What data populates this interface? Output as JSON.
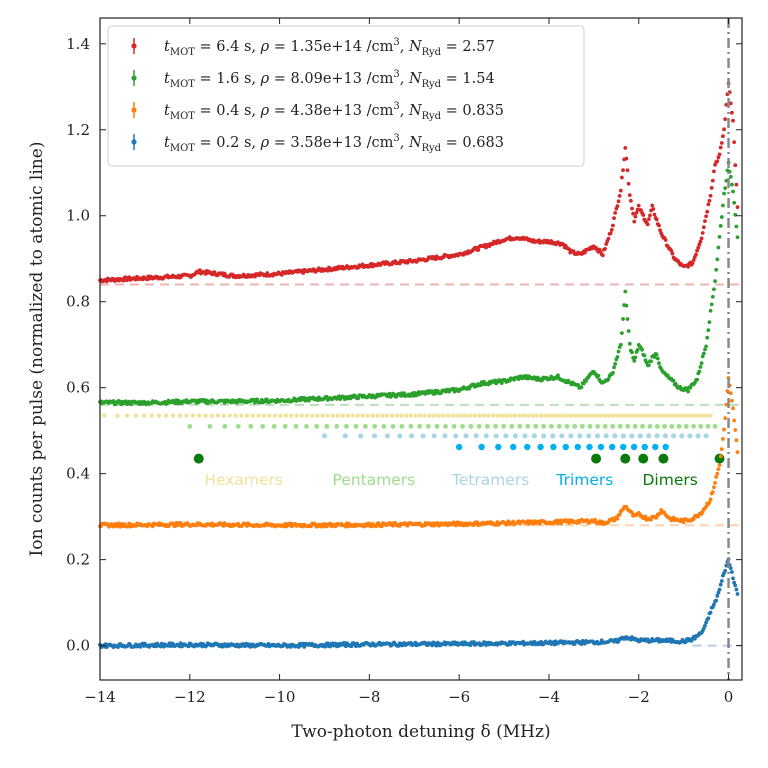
{
  "chart_data": {
    "type": "scatter",
    "xlabel": "Two-photon detuning δ (MHz)",
    "ylabel": "Ion counts per pulse (normalized to atomic line)",
    "xlim": [
      -14,
      0.3
    ],
    "ylim": [
      -0.08,
      1.46
    ],
    "x_ticks": [
      -14,
      -12,
      -10,
      -8,
      -6,
      -4,
      -2,
      0
    ],
    "x_tick_labels": [
      "−14",
      "−12",
      "−10",
      "−8",
      "−6",
      "−4",
      "−2",
      "0"
    ],
    "y_ticks": [
      0.0,
      0.2,
      0.4,
      0.6,
      0.8,
      1.0,
      1.2,
      1.4
    ],
    "y_tick_labels": [
      "0.0",
      "0.2",
      "0.4",
      "0.6",
      "0.8",
      "1.0",
      "1.2",
      "1.4"
    ],
    "grid": false,
    "legend_position": "top-left",
    "atomic_line_x": 0,
    "series": [
      {
        "name": "t_MOT = 6.4 s, ρ = 1.35e+14 /cm³, N_Ryd = 2.57",
        "legend": {
          "t": "6.4",
          "rho": "1.35e+14",
          "n": "2.57"
        },
        "color": "#d62728",
        "background": 0.84,
        "x": [
          -14,
          -13,
          -12,
          -11.8,
          -11,
          -10,
          -9,
          -8,
          -7,
          -6,
          -5.4,
          -5,
          -4.7,
          -4.3,
          -4,
          -3.7,
          -3.5,
          -3.3,
          -3.0,
          -2.8,
          -2.6,
          -2.4,
          -2.3,
          -2.2,
          -2.1,
          -2.0,
          -1.9,
          -1.8,
          -1.7,
          -1.6,
          -1.5,
          -1.4,
          -1.2,
          -1.0,
          -0.8,
          -0.6,
          -0.4,
          -0.3,
          -0.2,
          -0.1,
          0.0,
          0.1,
          0.2
        ],
        "y": [
          0.85,
          0.855,
          0.86,
          0.87,
          0.86,
          0.865,
          0.875,
          0.885,
          0.895,
          0.91,
          0.93,
          0.945,
          0.95,
          0.94,
          0.94,
          0.935,
          0.915,
          0.91,
          0.93,
          0.91,
          0.97,
          1.06,
          1.16,
          1.05,
          0.99,
          1.02,
          1.0,
          0.98,
          1.02,
          0.99,
          0.96,
          0.94,
          0.9,
          0.88,
          0.89,
          0.95,
          1.05,
          1.12,
          1.14,
          1.2,
          1.31,
          1.22,
          1.02
        ]
      },
      {
        "name": "t_MOT = 1.6 s, ρ = 8.09e+13 /cm³, N_Ryd = 1.54",
        "legend": {
          "t": "1.6",
          "rho": "8.09e+13",
          "n": "1.54"
        },
        "color": "#2ca02c",
        "background": 0.56,
        "x": [
          -14,
          -13,
          -12,
          -11,
          -10,
          -9,
          -8,
          -7,
          -6,
          -5.5,
          -5,
          -4.6,
          -4.2,
          -3.8,
          -3.5,
          -3.3,
          -3.0,
          -2.8,
          -2.6,
          -2.4,
          -2.3,
          -2.2,
          -2.1,
          -2.0,
          -1.9,
          -1.8,
          -1.7,
          -1.6,
          -1.5,
          -1.3,
          -1.1,
          -0.9,
          -0.7,
          -0.5,
          -0.3,
          -0.2,
          -0.1,
          0.0,
          0.1,
          0.2
        ],
        "y": [
          0.565,
          0.565,
          0.568,
          0.568,
          0.57,
          0.575,
          0.58,
          0.585,
          0.595,
          0.61,
          0.615,
          0.625,
          0.62,
          0.625,
          0.61,
          0.6,
          0.64,
          0.61,
          0.63,
          0.7,
          0.82,
          0.7,
          0.66,
          0.7,
          0.68,
          0.65,
          0.67,
          0.68,
          0.64,
          0.62,
          0.6,
          0.595,
          0.62,
          0.7,
          0.85,
          0.95,
          1.05,
          1.12,
          1.06,
          0.95
        ]
      },
      {
        "name": "t_MOT = 0.4 s, ρ = 4.38e+13 /cm³, N_Ryd = 0.835",
        "legend": {
          "t": "0.4",
          "rho": "4.38e+13",
          "n": "0.835"
        },
        "color": "#ff7f0e",
        "background": 0.28,
        "x": [
          -14,
          -12,
          -10,
          -8,
          -6,
          -4,
          -3.0,
          -2.8,
          -2.5,
          -2.3,
          -2.1,
          -2.0,
          -1.8,
          -1.6,
          -1.5,
          -1.3,
          -1.0,
          -0.8,
          -0.6,
          -0.4,
          -0.3,
          -0.2,
          -0.1,
          0.0,
          0.1,
          0.2
        ],
        "y": [
          0.28,
          0.282,
          0.28,
          0.281,
          0.283,
          0.287,
          0.29,
          0.285,
          0.295,
          0.325,
          0.3,
          0.305,
          0.295,
          0.3,
          0.315,
          0.295,
          0.29,
          0.295,
          0.31,
          0.34,
          0.38,
          0.42,
          0.5,
          0.62,
          0.55,
          0.45
        ]
      },
      {
        "name": "t_MOT = 0.2 s, ρ = 3.58e+13 /cm³, N_Ryd = 0.683",
        "legend": {
          "t": "0.2",
          "rho": "3.58e+13",
          "n": "0.683"
        },
        "color": "#1f77b4",
        "background": 0.0,
        "x": [
          -14,
          -12,
          -10,
          -8,
          -6,
          -4,
          -3,
          -2.5,
          -2.3,
          -2.0,
          -1.5,
          -1.0,
          -0.8,
          -0.6,
          -0.5,
          -0.4,
          -0.3,
          -0.2,
          -0.1,
          0.0,
          0.1,
          0.2
        ],
        "y": [
          0.0,
          0.002,
          0.0,
          0.003,
          0.004,
          0.006,
          0.008,
          0.01,
          0.02,
          0.012,
          0.012,
          0.01,
          0.015,
          0.03,
          0.05,
          0.08,
          0.1,
          0.13,
          0.17,
          0.2,
          0.16,
          0.12
        ]
      }
    ],
    "cluster_lines": [
      {
        "label": "Hexamers",
        "color": "#f0e29a",
        "y": 0.535,
        "x_min": -13.9,
        "x_max": -0.4,
        "dot_size": 2.2
      },
      {
        "label": "Pentamers",
        "color": "#9edd8c",
        "y": 0.51,
        "x_min": -12.0,
        "x_max": -0.3,
        "dot_size": 2.4
      },
      {
        "label": "Tetramers",
        "color": "#a9d6e5",
        "y": 0.488,
        "x_min": -9.0,
        "x_max": -0.5,
        "dot_size": 2.6
      },
      {
        "label": "Trimers",
        "color": "#00b0f0",
        "y": 0.462,
        "x_min": -6.0,
        "x_max": -1.4,
        "dot_size": 3.2
      },
      {
        "label": "Dimers",
        "color": "#0a7a0a",
        "y": 0.435,
        "x_values": [
          -11.8,
          -2.95,
          -2.3,
          -1.9,
          -1.45,
          -0.2
        ],
        "dot_size": 5
      }
    ],
    "cluster_label_y": 0.385,
    "cluster_label_x": [
      -10.8,
      -7.9,
      -5.3,
      -3.2,
      -1.3
    ]
  }
}
